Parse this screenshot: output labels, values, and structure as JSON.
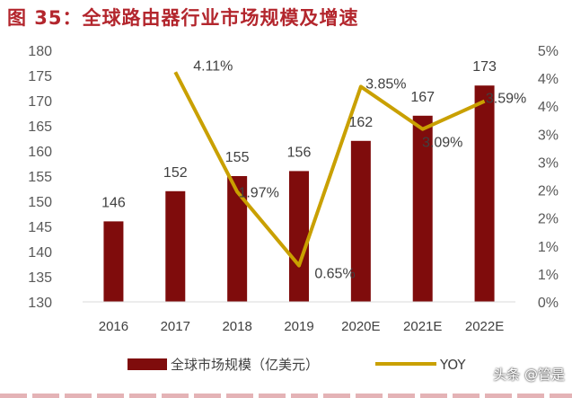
{
  "figure_title": "图 35：全球路由器行业市场规模及增速",
  "watermark": "头条 @管是",
  "colors": {
    "bar": "#7f0c0c",
    "line": "#c9a000",
    "title": "#b3262d"
  },
  "chart_data": {
    "type": "bar+line",
    "categories": [
      "2016",
      "2017",
      "2018",
      "2019",
      "2020E",
      "2021E",
      "2022E"
    ],
    "series": [
      {
        "name": "全球市场规模（亿美元）",
        "type": "bar",
        "axis": "left",
        "values": [
          146,
          152,
          155,
          156,
          162,
          167,
          173
        ],
        "labels": [
          "146",
          "152",
          "155",
          "156",
          "162",
          "167",
          "173"
        ]
      },
      {
        "name": "YOY",
        "type": "line",
        "axis": "right",
        "values": [
          null,
          4.11,
          1.97,
          0.65,
          3.85,
          3.09,
          3.59
        ],
        "labels": [
          "",
          "4.11%",
          "1.97%",
          "0.65%",
          "3.85%",
          "3.09%",
          "3.59%"
        ]
      }
    ],
    "left_axis": {
      "ylim": [
        130,
        180
      ],
      "ticks": [
        "130",
        "135",
        "140",
        "145",
        "150",
        "155",
        "160",
        "165",
        "170",
        "175",
        "180"
      ]
    },
    "right_axis": {
      "ylim": [
        0,
        4.5
      ],
      "ticks": [
        "0%",
        "1%",
        "1%",
        "2%",
        "2%",
        "3%",
        "3%",
        "4%",
        "4%",
        "5%"
      ]
    },
    "grid": false,
    "legend": "bottom"
  }
}
